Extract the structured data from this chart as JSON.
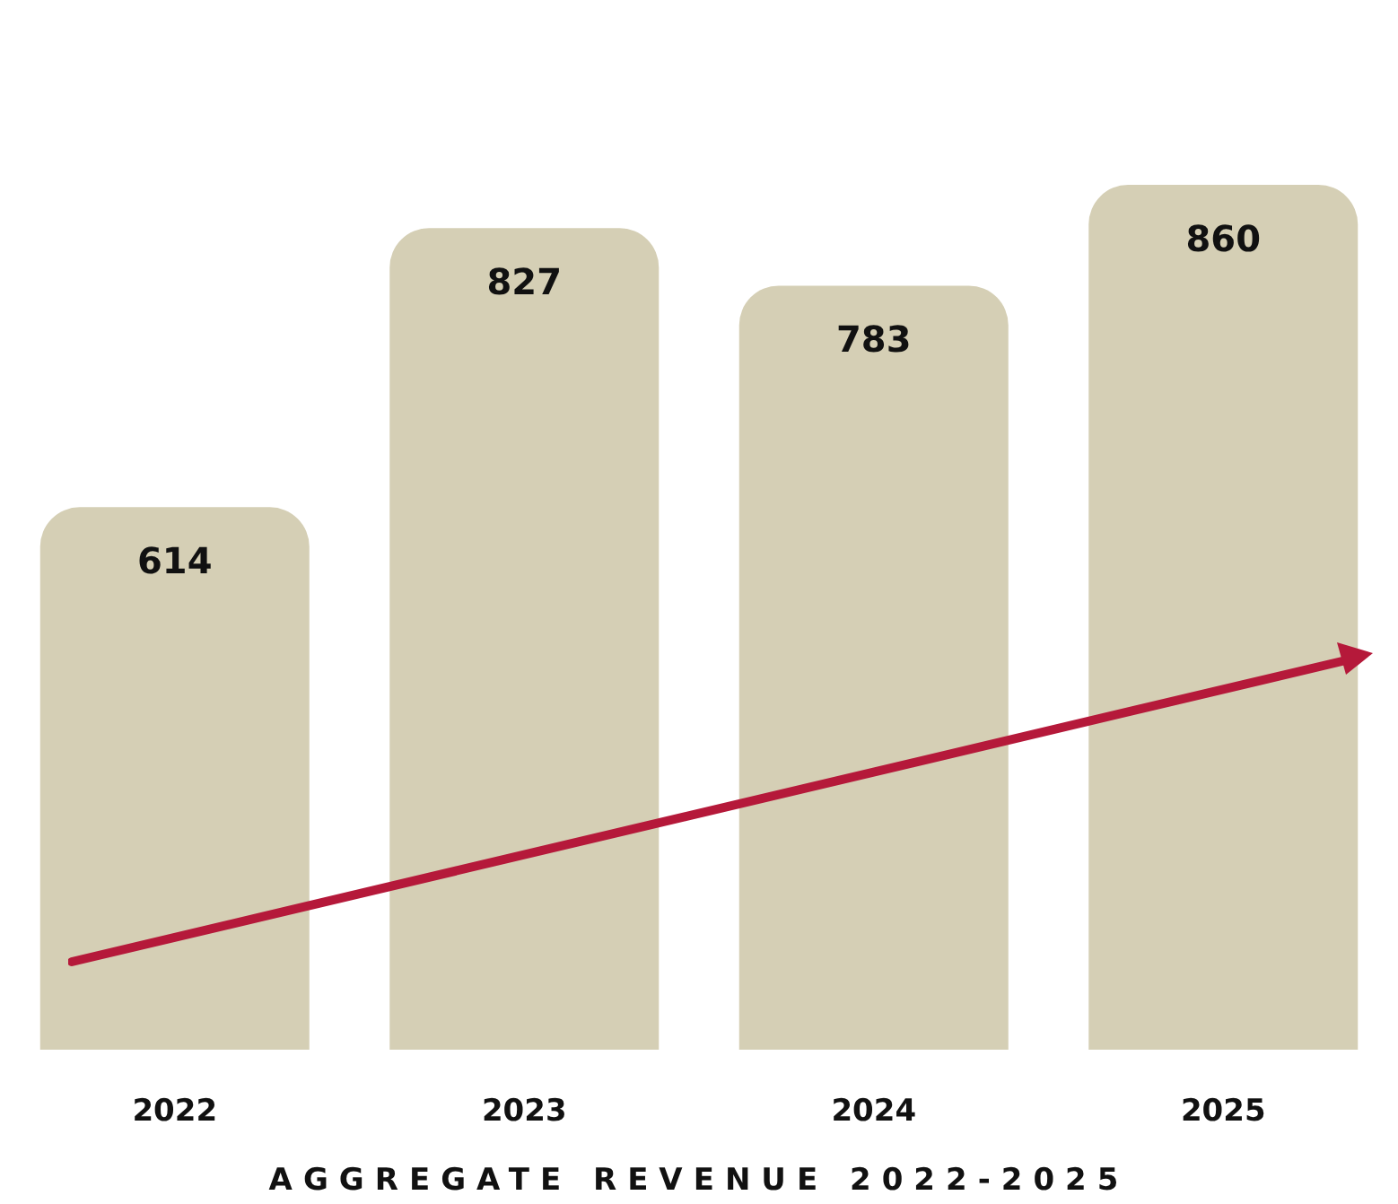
{
  "chart_data": {
    "type": "bar",
    "title": "AGGREGATE REVENUE 2022-2025",
    "categories": [
      "2022",
      "2023",
      "2024",
      "2025"
    ],
    "values": [
      614,
      827,
      783,
      860
    ],
    "color": "#d5cfb5",
    "ylim": [
      200,
      860
    ],
    "data_labels": true,
    "tick_labels": "x"
  }
}
